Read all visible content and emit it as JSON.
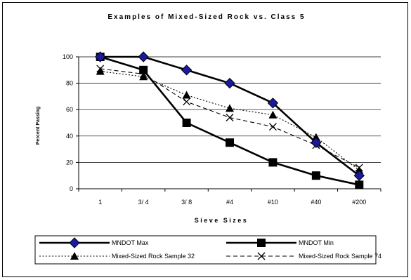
{
  "chart_data": {
    "type": "line",
    "title": "Examples of Mixed-Sized Rock vs. Class 5",
    "xlabel": "Sieve Sizes",
    "ylabel": "Percent Passing",
    "categories": [
      "1",
      "3/ 4",
      "3/ 8",
      "#4",
      "#10",
      "#40",
      "#200"
    ],
    "ylim": [
      0,
      100
    ],
    "yticks": [
      "0",
      "20",
      "40",
      "60",
      "80",
      "100"
    ],
    "grid": "horizontal",
    "legend_position": "bottom",
    "series": [
      {
        "name": "MNDOT Max",
        "values": [
          100,
          100,
          90,
          80,
          65,
          35,
          10
        ],
        "marker": "diamond",
        "color": "#1a1aa0",
        "line": "solid-thick"
      },
      {
        "name": "MNDOT Min",
        "values": [
          100,
          90,
          50,
          35,
          20,
          10,
          3
        ],
        "marker": "square",
        "color": "#000000",
        "line": "solid-thick"
      },
      {
        "name": "Mixed-Sized Rock Sample 32",
        "values": [
          89,
          85,
          71,
          61,
          56,
          39,
          14
        ],
        "marker": "triangle",
        "color": "#000000",
        "line": "dotted"
      },
      {
        "name": "Mixed-Sized Rock Sample 74",
        "values": [
          91,
          87,
          66,
          54,
          47,
          33,
          16
        ],
        "marker": "x",
        "color": "#000000",
        "line": "dashed"
      }
    ]
  }
}
